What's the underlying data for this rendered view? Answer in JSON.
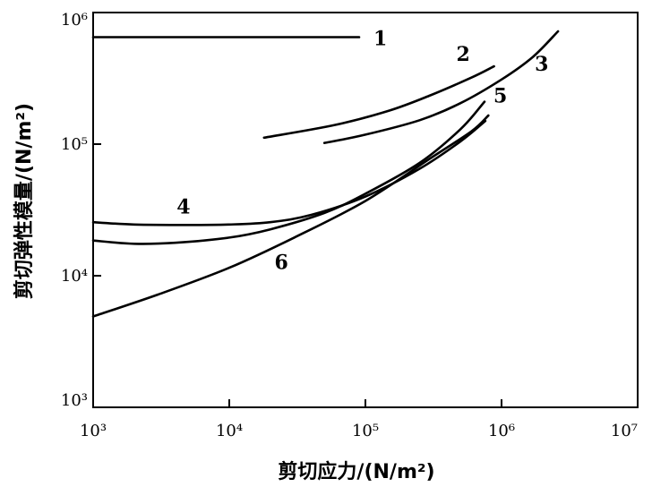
{
  "chart_data": {
    "type": "line",
    "title": "",
    "xlabel": "剪切应力/(N/m²)",
    "ylabel": "剪切弹性模量/(N/m²)",
    "xscale": "log",
    "yscale": "log",
    "xlim": [
      1000,
      10000000
    ],
    "ylim": [
      1000,
      1000000
    ],
    "grid": false,
    "x_ticks": [
      1000,
      10000,
      100000,
      1000000,
      10000000
    ],
    "x_tick_labels": [
      "10³",
      "10⁴",
      "10⁵",
      "10⁶",
      "10⁷"
    ],
    "y_ticks": [
      1000,
      10000,
      100000,
      1000000
    ],
    "y_tick_labels": [
      "10³",
      "10⁴",
      "10⁵",
      "10⁶"
    ],
    "series": [
      {
        "label": "1",
        "color": "#000000",
        "points": [
          [
            1000,
            650000
          ],
          [
            10000,
            650000
          ],
          [
            90000,
            650000
          ]
        ]
      },
      {
        "label": "2",
        "color": "#000000",
        "points": [
          [
            18000,
            112000
          ],
          [
            60000,
            140000
          ],
          [
            150000,
            180000
          ],
          [
            300000,
            235000
          ],
          [
            600000,
            320000
          ],
          [
            880000,
            390000
          ]
        ]
      },
      {
        "label": "3",
        "color": "#000000",
        "points": [
          [
            50000,
            102000
          ],
          [
            100000,
            118000
          ],
          [
            250000,
            152000
          ],
          [
            500000,
            205000
          ],
          [
            1000000,
            310000
          ],
          [
            1700000,
            460000
          ],
          [
            2600000,
            720000
          ]
        ]
      },
      {
        "label": "4",
        "color": "#000000",
        "points": [
          [
            1000,
            25500
          ],
          [
            2000,
            24500
          ],
          [
            5000,
            24300
          ],
          [
            10000,
            24500
          ],
          [
            20000,
            25500
          ],
          [
            40000,
            29000
          ],
          [
            100000,
            40000
          ],
          [
            250000,
            65000
          ],
          [
            500000,
            105000
          ],
          [
            760000,
            150000
          ]
        ]
      },
      {
        "label": "5",
        "color": "#000000",
        "points": [
          [
            1000,
            18500
          ],
          [
            2000,
            17500
          ],
          [
            4000,
            17800
          ],
          [
            10000,
            19500
          ],
          [
            20000,
            22500
          ],
          [
            50000,
            30000
          ],
          [
            100000,
            42000
          ],
          [
            250000,
            72000
          ],
          [
            500000,
            130000
          ],
          [
            750000,
            210000
          ]
        ]
      },
      {
        "label": "6",
        "color": "#000000",
        "points": [
          [
            1000,
            4900
          ],
          [
            3000,
            7200
          ],
          [
            10000,
            11500
          ],
          [
            30000,
            19500
          ],
          [
            100000,
            37000
          ],
          [
            300000,
            78000
          ],
          [
            600000,
            125000
          ],
          [
            800000,
            165000
          ]
        ]
      }
    ]
  }
}
